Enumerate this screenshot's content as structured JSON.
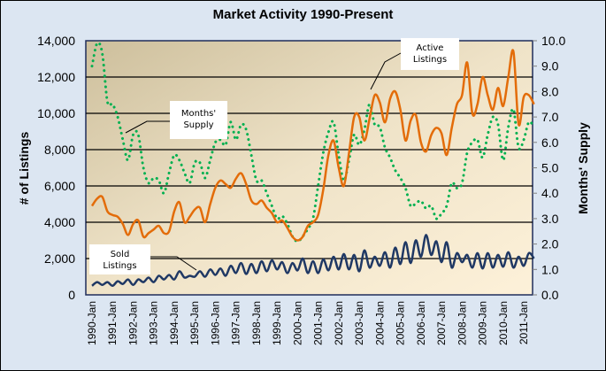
{
  "chart_data": {
    "type": "line",
    "title": "Market Activity  1990-Present",
    "ylabel": "# of Listings",
    "y2label": "Months' Supply",
    "xlabel": "",
    "ylim": [
      0,
      14000
    ],
    "y2lim": [
      0,
      10
    ],
    "yticks": [
      "0",
      "2,000",
      "4,000",
      "6,000",
      "8,000",
      "10,000",
      "12,000",
      "14,000"
    ],
    "y2ticks": [
      "0.0",
      "1.0",
      "2.0",
      "3.0",
      "4.0",
      "5.0",
      "6.0",
      "7.0",
      "8.0",
      "9.0",
      "10.0"
    ],
    "categories": [
      "1990-Jan",
      "1991-Jan",
      "1992-Jan",
      "1993-Jan",
      "1994-Jan",
      "1995-Jan",
      "1996-Jan",
      "1997-Jan",
      "1998-Jan",
      "1999-Jan",
      "2000-Jan",
      "2001-Jan",
      "2002-Jan",
      "2003-Jan",
      "2004-Jan",
      "2005-Jan",
      "2006-Jan",
      "2007-Jan",
      "2008-Jan",
      "2009-Jan",
      "2010-Jan",
      "2011-Jan"
    ],
    "grid": true,
    "x": [
      1990.0,
      1990.25,
      1990.5,
      1990.75,
      1991.0,
      1991.25,
      1991.5,
      1991.75,
      1992.0,
      1992.25,
      1992.5,
      1992.75,
      1993.0,
      1993.25,
      1993.5,
      1993.75,
      1994.0,
      1994.25,
      1994.5,
      1994.75,
      1995.0,
      1995.25,
      1995.5,
      1995.75,
      1996.0,
      1996.25,
      1996.5,
      1996.75,
      1997.0,
      1997.25,
      1997.5,
      1997.75,
      1998.0,
      1998.25,
      1998.5,
      1998.75,
      1999.0,
      1999.25,
      1999.5,
      1999.75,
      2000.0,
      2000.25,
      2000.5,
      2000.75,
      2001.0,
      2001.25,
      2001.5,
      2001.75,
      2002.0,
      2002.25,
      2002.5,
      2002.75,
      2003.0,
      2003.25,
      2003.5,
      2003.75,
      2004.0,
      2004.25,
      2004.5,
      2004.75,
      2005.0,
      2005.25,
      2005.5,
      2005.75,
      2006.0,
      2006.25,
      2006.5,
      2006.75,
      2007.0,
      2007.25,
      2007.5,
      2007.75,
      2008.0,
      2008.25,
      2008.5,
      2008.75,
      2009.0,
      2009.25,
      2009.5,
      2009.75,
      2010.0,
      2010.25,
      2010.5,
      2010.75,
      2011.0,
      2011.25,
      2011.5
    ],
    "series": [
      {
        "name": "Active Listings",
        "axis": "left",
        "color": "#e36c09",
        "style": "solid",
        "values": [
          4900,
          5300,
          5400,
          4600,
          4400,
          4300,
          3900,
          3300,
          3900,
          4100,
          3200,
          3400,
          3600,
          3800,
          3400,
          3500,
          4600,
          5100,
          4000,
          4300,
          4700,
          4800,
          4000,
          5000,
          5900,
          6300,
          6100,
          5900,
          6400,
          6700,
          6100,
          5200,
          5000,
          5200,
          4800,
          4500,
          4000,
          4100,
          3700,
          3200,
          3000,
          3200,
          3800,
          4000,
          4400,
          5800,
          7700,
          8500,
          7000,
          6000,
          7800,
          9800,
          9800,
          8500,
          9700,
          11000,
          10600,
          9500,
          10800,
          11200,
          10200,
          8500,
          9600,
          9900,
          8400,
          7900,
          8800,
          9200,
          8900,
          7700,
          9200,
          10500,
          11000,
          12800,
          10000,
          10500,
          12000,
          11000,
          10200,
          11400,
          10400,
          12000,
          13400,
          9400,
          10900,
          11000,
          10500
        ]
      },
      {
        "name": "Months' Supply",
        "axis": "right",
        "color": "#00b050",
        "style": "dotted",
        "values": [
          9.0,
          9.9,
          9.5,
          7.6,
          7.5,
          7.0,
          6.1,
          5.3,
          6.3,
          6.3,
          5.0,
          4.4,
          4.6,
          4.5,
          4.0,
          4.8,
          5.5,
          5.3,
          4.8,
          4.4,
          5.2,
          5.2,
          4.6,
          5.3,
          6.0,
          6.1,
          5.9,
          6.8,
          6.1,
          6.7,
          6.5,
          5.5,
          4.5,
          4.5,
          4.0,
          3.5,
          3.0,
          3.1,
          2.8,
          2.3,
          2.1,
          2.3,
          2.6,
          3.0,
          4.3,
          5.6,
          6.4,
          6.8,
          5.5,
          4.5,
          5.3,
          6.3,
          5.9,
          6.5,
          7.5,
          6.7,
          6.6,
          5.8,
          5.4,
          4.9,
          4.6,
          4.2,
          3.5,
          3.6,
          3.7,
          3.4,
          3.5,
          3.0,
          3.2,
          3.5,
          4.4,
          4.2,
          4.4,
          5.6,
          6.0,
          6.1,
          5.4,
          6.3,
          7.0,
          6.7,
          5.3,
          6.6,
          7.3,
          5.8,
          6.1,
          6.8,
          6.6
        ]
      },
      {
        "name": "Sold Listings",
        "axis": "left",
        "color": "#1f3864",
        "style": "solid",
        "values": [
          500,
          700,
          550,
          700,
          500,
          750,
          600,
          850,
          550,
          850,
          700,
          950,
          700,
          1050,
          850,
          1100,
          850,
          1300,
          950,
          1050,
          1000,
          1300,
          1000,
          1400,
          1100,
          1450,
          1050,
          1600,
          1200,
          1750,
          1150,
          1700,
          1200,
          1850,
          1300,
          1900,
          1400,
          1800,
          1200,
          1750,
          1350,
          2000,
          1200,
          1850,
          1200,
          1950,
          1350,
          2100,
          1400,
          2250,
          1400,
          2200,
          1300,
          2450,
          1500,
          2100,
          1600,
          2350,
          1500,
          2600,
          1700,
          2900,
          1750,
          3000,
          2100,
          3300,
          2200,
          2950,
          1800,
          2900,
          1500,
          2300,
          1800,
          2200,
          1500,
          2300,
          1450,
          2300,
          1500,
          2200,
          1550,
          2350,
          1500,
          2100,
          1600,
          2300,
          2000
        ]
      }
    ],
    "annotations": [
      {
        "text": [
          "Active",
          "Listings"
        ],
        "points_to": "Active Listings"
      },
      {
        "text": [
          "Months'",
          "Supply"
        ],
        "points_to": "Months' Supply"
      },
      {
        "text": [
          "Sold",
          "Listings"
        ],
        "points_to": "Sold Listings"
      }
    ]
  }
}
